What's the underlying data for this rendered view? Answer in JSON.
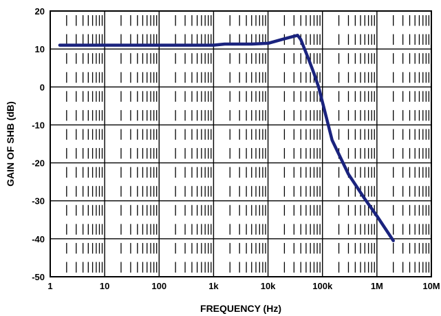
{
  "chart_data": {
    "type": "line",
    "title": "",
    "xlabel": "FREQUENCY (Hz)",
    "ylabel": "GAIN OF SHB (dB)",
    "x_scale": "log",
    "xlim": [
      1,
      10000000
    ],
    "ylim": [
      -50,
      20
    ],
    "x_ticks": [
      1,
      10,
      100,
      1000,
      10000,
      100000,
      1000000,
      10000000
    ],
    "x_tick_labels": [
      "1",
      "10",
      "100",
      "1k",
      "10k",
      "100k",
      "1M",
      "10M"
    ],
    "y_ticks": [
      20,
      10,
      0,
      -10,
      -20,
      -30,
      -40,
      -50
    ],
    "y_tick_labels": [
      "20",
      "10",
      "0",
      "-10",
      "-20",
      "-30",
      "-40",
      "-50"
    ],
    "grid": true,
    "colors": {
      "line": "#1a237e",
      "grid": "#000000",
      "frame": "#000000"
    },
    "series": [
      {
        "x": [
          1.5,
          10,
          100,
          1000,
          1600,
          5000,
          10000,
          20000,
          35000,
          40000,
          55000,
          70000,
          85000,
          100000,
          150000,
          300000,
          600000,
          1000000,
          2000000
        ],
        "y": [
          11,
          11,
          11,
          11,
          11.3,
          11.3,
          11.5,
          12.7,
          13.6,
          12.5,
          7.5,
          3.5,
          0,
          -4,
          -14,
          -23,
          -29.5,
          -34,
          -40.5
        ]
      }
    ]
  }
}
